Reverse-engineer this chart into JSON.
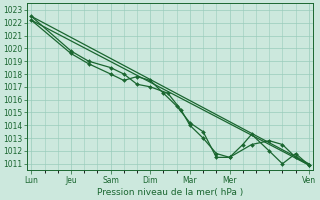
{
  "title": "Pression niveau de la mer( hPa )",
  "ylabel_ticks": [
    1011,
    1012,
    1013,
    1014,
    1015,
    1016,
    1017,
    1018,
    1019,
    1020,
    1021,
    1022,
    1023
  ],
  "ylim": [
    1010.5,
    1023.5
  ],
  "day_labels": [
    "Lun",
    "Jeu",
    "Sam",
    "Dim",
    "Mar",
    "Mer",
    "Ven"
  ],
  "day_positions": [
    0,
    9,
    18,
    27,
    36,
    45,
    63
  ],
  "xlim": [
    -1,
    64
  ],
  "bg_color": "#cce8dd",
  "grid_color": "#99ccbb",
  "line_color": "#1a6630",
  "trend_line1": {
    "x": [
      0,
      63
    ],
    "y": [
      1022.5,
      1011.0
    ]
  },
  "trend_line2": {
    "x": [
      0,
      63
    ],
    "y": [
      1022.2,
      1010.9
    ]
  },
  "wiggly1_x": [
    0,
    9,
    13,
    18,
    21,
    24,
    27,
    30,
    33,
    36,
    39,
    42,
    45,
    50,
    54,
    57,
    60,
    63
  ],
  "wiggly1_y": [
    1022.2,
    1019.6,
    1018.8,
    1018.0,
    1017.5,
    1017.8,
    1017.5,
    1016.5,
    1015.5,
    1014.2,
    1013.5,
    1011.5,
    1011.5,
    1012.5,
    1012.8,
    1012.5,
    1011.5,
    1010.9
  ],
  "wiggly2_x": [
    0,
    9,
    13,
    18,
    21,
    24,
    27,
    31,
    34,
    36,
    39,
    42,
    45,
    48,
    50,
    54,
    57,
    60,
    63
  ],
  "wiggly2_y": [
    1022.5,
    1019.8,
    1019.0,
    1018.5,
    1018.0,
    1017.2,
    1017.0,
    1016.5,
    1015.2,
    1014.0,
    1013.0,
    1011.8,
    1011.5,
    1012.5,
    1013.3,
    1012.0,
    1011.0,
    1011.8,
    1010.9
  ],
  "marker_size": 2.0,
  "linewidth": 0.9,
  "tick_labelsize": 5.5,
  "xlabel_fontsize": 6.5
}
